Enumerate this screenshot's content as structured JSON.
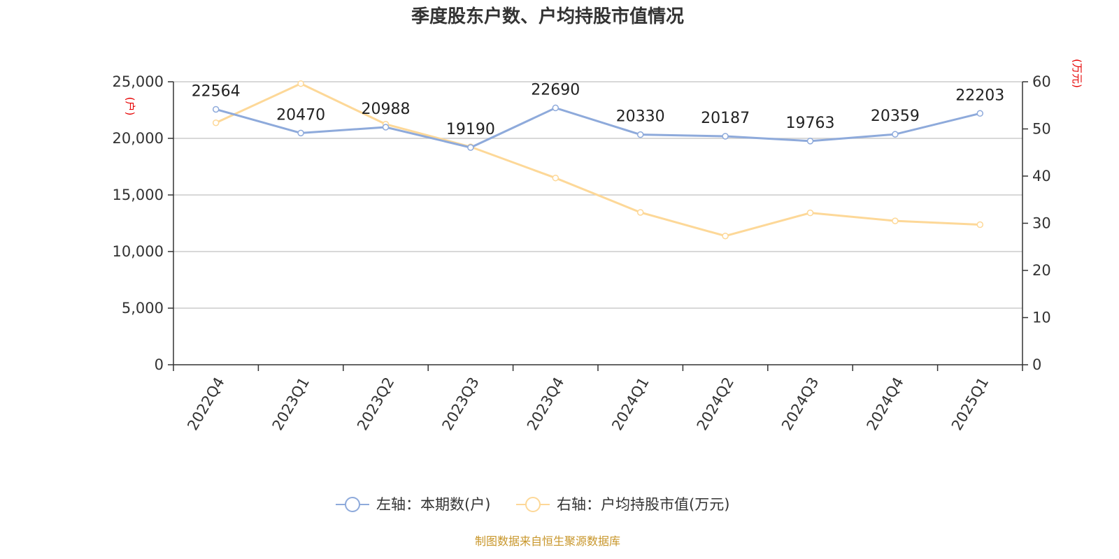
{
  "title": "季度股东户数、户均持股市值情况",
  "source": "制图数据来自恒生聚源数据库",
  "colors": {
    "left_series": "#8eaadb",
    "right_series": "#fdd898",
    "unit_label": "#e60000",
    "source": "#c8962a",
    "grid": "#cccccc",
    "axis": "#333333"
  },
  "chart_data": {
    "type": "line",
    "title": "季度股东户数、户均持股市值情况",
    "categories": [
      "2022Q4",
      "2023Q1",
      "2023Q2",
      "2023Q3",
      "2023Q4",
      "2024Q1",
      "2024Q2",
      "2024Q3",
      "2024Q4",
      "2025Q1"
    ],
    "left_axis": {
      "unit": "(户)",
      "ylim": [
        0,
        25000
      ],
      "ticks": [
        0,
        5000,
        10000,
        15000,
        20000,
        25000
      ],
      "tick_labels": [
        "0",
        "5,000",
        "10,000",
        "15,000",
        "20,000",
        "25,000"
      ]
    },
    "right_axis": {
      "unit": "(万元)",
      "ylim": [
        0,
        60
      ],
      "ticks": [
        0,
        10,
        20,
        30,
        40,
        50,
        60
      ],
      "tick_labels": [
        "0",
        "10",
        "20",
        "30",
        "40",
        "50",
        "60"
      ]
    },
    "grid": true,
    "legend_position": "bottom",
    "series": [
      {
        "name": "左轴：本期数(户)",
        "axis": "left",
        "values": [
          22564,
          20470,
          20988,
          19190,
          22690,
          20330,
          20187,
          19763,
          20359,
          22203
        ],
        "labels": [
          "22564",
          "20470",
          "20988",
          "19190",
          "22690",
          "20330",
          "20187",
          "19763",
          "20359",
          "22203"
        ]
      },
      {
        "name": "右轴：户均持股市值(万元)",
        "axis": "right",
        "values": [
          51.3,
          59.6,
          51.0,
          46.2,
          39.6,
          32.3,
          27.3,
          32.2,
          30.5,
          29.7
        ]
      }
    ]
  }
}
